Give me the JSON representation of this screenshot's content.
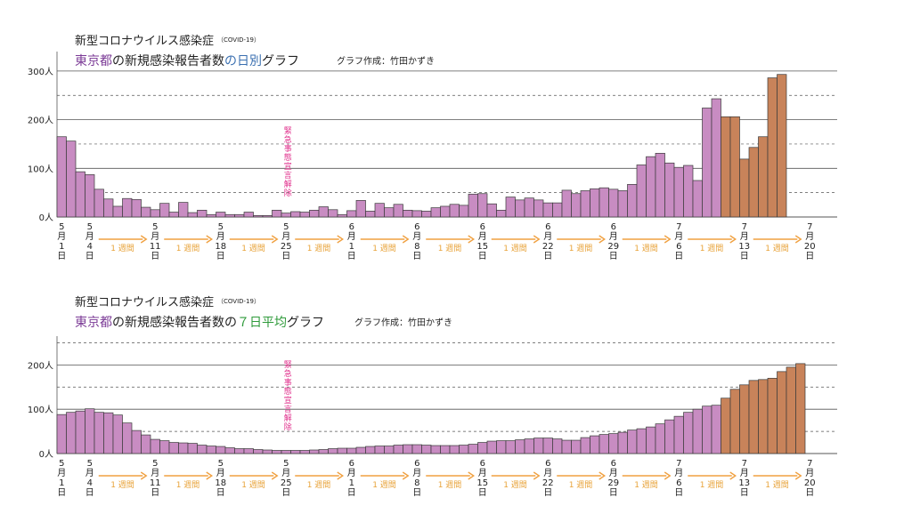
{
  "colors": {
    "pink": "#c88cc2",
    "orange": "#c8835a",
    "bar_stroke": "#3a3a3a",
    "purple_text": "#7b3a96",
    "blue_text": "#3a6fb0",
    "green_text": "#2e9a3a",
    "arrow": "#f0a040",
    "note": "#e0308c",
    "grid": "#555555"
  },
  "week_label": "1 週間",
  "chart_data": [
    {
      "type": "bar",
      "title_line1": "新型コロナウイルス感染症",
      "title_sup": "（COVID-19）",
      "title_p1": "東京都",
      "title_p2": "の新規感染報告者数",
      "title_p3": "の日別",
      "title_p4": "グラフ",
      "credit": "グラフ作成：竹田かずき",
      "annotation": "緊急事態宣言解除",
      "ylim": [
        0,
        340
      ],
      "yticks": [
        {
          "v": 0,
          "label": "0人"
        },
        {
          "v": 100,
          "label": "100人"
        },
        {
          "v": 200,
          "label": "200人"
        },
        {
          "v": 300,
          "label": "300人"
        }
      ],
      "dashed": [
        50,
        150,
        250
      ],
      "xticks": [
        {
          "i": 0,
          "label": "5,月,1,日"
        },
        {
          "i": 3,
          "label": "5,月,4,日"
        },
        {
          "i": 10,
          "label": "5,月,11,日"
        },
        {
          "i": 17,
          "label": "5,月,18,日"
        },
        {
          "i": 24,
          "label": "5,月,25,日"
        },
        {
          "i": 31,
          "label": "6,月,1,日"
        },
        {
          "i": 38,
          "label": "6,月,8,日"
        },
        {
          "i": 45,
          "label": "6,月,15,日"
        },
        {
          "i": 52,
          "label": "6,月,22,日"
        },
        {
          "i": 59,
          "label": "6,月,29,日"
        },
        {
          "i": 66,
          "label": "7,月,6,日"
        },
        {
          "i": 73,
          "label": "7,月,13,日"
        },
        {
          "i": 80,
          "label": "7,月,20,日"
        }
      ],
      "orange_start": 71,
      "values": [
        165,
        156,
        93,
        87,
        57,
        37,
        22,
        38,
        36,
        20,
        15,
        28,
        10,
        30,
        9,
        14,
        5,
        10,
        5,
        5,
        10,
        3,
        3,
        14,
        8,
        11,
        10,
        14,
        21,
        15,
        5,
        13,
        34,
        12,
        28,
        19,
        26,
        14,
        13,
        12,
        19,
        22,
        26,
        24,
        47,
        48,
        27,
        14,
        41,
        35,
        39,
        35,
        29,
        29,
        55,
        48,
        54,
        58,
        60,
        57,
        54,
        67,
        107,
        124,
        131,
        111,
        102,
        106,
        75,
        224,
        243,
        206,
        206,
        119,
        143,
        165,
        286,
        293
      ]
    },
    {
      "type": "bar",
      "title_line1": "新型コロナウイルス感染症",
      "title_sup": "（COVID-19）",
      "title_p1": "東京都",
      "title_p2": "の新規感染報告者数の",
      "title_p3": "７日平均",
      "title_p4": "グラフ",
      "credit": "グラフ作成：竹田かずき",
      "annotation": "緊急事態宣言解除",
      "ylim": [
        0,
        265
      ],
      "yticks": [
        {
          "v": 0,
          "label": "0人"
        },
        {
          "v": 100,
          "label": "100人"
        },
        {
          "v": 200,
          "label": "200人"
        }
      ],
      "dashed": [
        50,
        150,
        250
      ],
      "xticks": [
        {
          "i": 0,
          "label": "5,月,1,日"
        },
        {
          "i": 3,
          "label": "5,月,4,日"
        },
        {
          "i": 10,
          "label": "5,月,11,日"
        },
        {
          "i": 17,
          "label": "5,月,18,日"
        },
        {
          "i": 24,
          "label": "5,月,25,日"
        },
        {
          "i": 31,
          "label": "6,月,1,日"
        },
        {
          "i": 38,
          "label": "6,月,8,日"
        },
        {
          "i": 45,
          "label": "6,月,15,日"
        },
        {
          "i": 52,
          "label": "6,月,22,日"
        },
        {
          "i": 59,
          "label": "6,月,29,日"
        },
        {
          "i": 66,
          "label": "7,月,6,日"
        },
        {
          "i": 73,
          "label": "7,月,13,日"
        },
        {
          "i": 80,
          "label": "7,月,20,日"
        }
      ],
      "orange_start": 71,
      "values": [
        88,
        93,
        96,
        101,
        93,
        92,
        87,
        69,
        52,
        42,
        32,
        29,
        25,
        24,
        23,
        19,
        17,
        16,
        13,
        11,
        11,
        9,
        8,
        7,
        7,
        7,
        7,
        8,
        9,
        11,
        12,
        12,
        14,
        16,
        17,
        17,
        19,
        20,
        20,
        19,
        18,
        18,
        18,
        19,
        21,
        25,
        28,
        29,
        29,
        31,
        33,
        35,
        35,
        33,
        30,
        30,
        36,
        40,
        43,
        45,
        48,
        53,
        56,
        60,
        67,
        76,
        84,
        93,
        100,
        107,
        109,
        125,
        145,
        155,
        165,
        167,
        170,
        185,
        195,
        203
      ]
    }
  ]
}
